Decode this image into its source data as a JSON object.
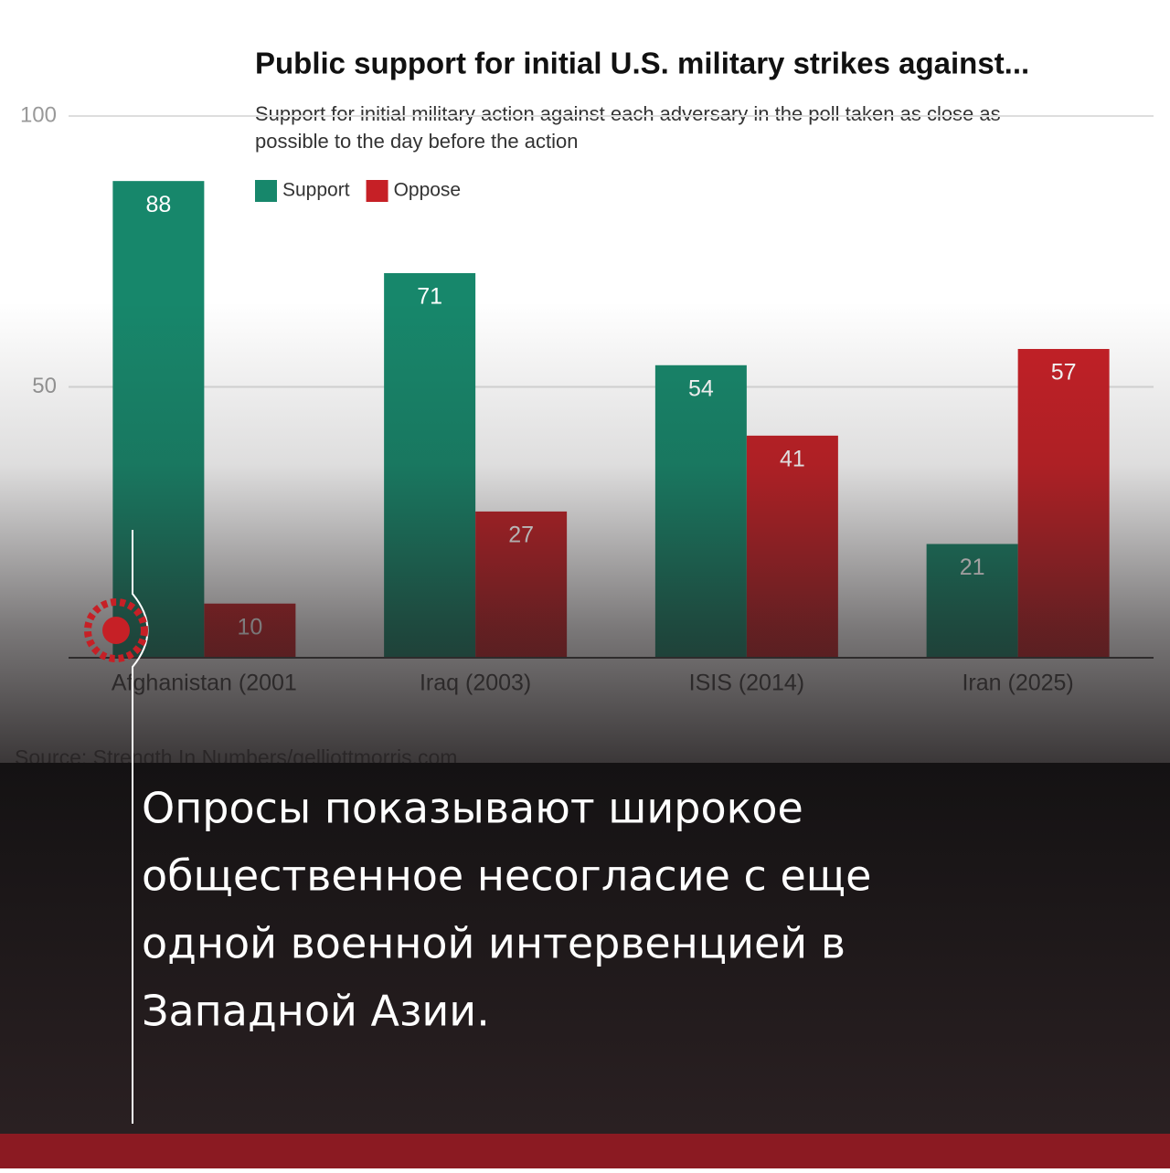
{
  "chart_data": {
    "type": "bar",
    "title": "Public support for initial U.S. military strikes against...",
    "subtitle": [
      "Support for initial military action against each adversary in the poll taken as close as",
      "possible to the day before the action"
    ],
    "categories": [
      "Afghanistan (2001",
      "Iraq (2003)",
      "ISIS (2014)",
      "Iran (2025)"
    ],
    "series": [
      {
        "name": "Support",
        "color": "#17876b",
        "values": [
          88,
          71,
          54,
          21
        ]
      },
      {
        "name": "Oppose",
        "color": "#c62026",
        "values": [
          10,
          27,
          41,
          57
        ]
      }
    ],
    "ylim": [
      0,
      100
    ],
    "yticks": [
      50,
      100
    ],
    "grid": true,
    "source": "Source: Strength In Numbers/gelliottmorris.com"
  },
  "headline": [
    "Опросы показывают широкое",
    "общественное несогласие с еще",
    "одной военной интервенцией в",
    "Западной Азии."
  ]
}
